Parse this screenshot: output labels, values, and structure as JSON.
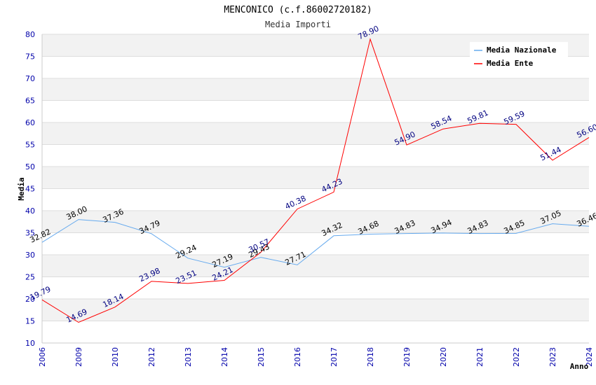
{
  "chart_data": {
    "type": "line",
    "title": "MENCONICO (c.f.86002720182)",
    "subtitle": "Media Importi",
    "xlabel": "Anno",
    "ylabel": "Media",
    "ylim": [
      10,
      80
    ],
    "ytick_step": 5,
    "categories": [
      "2006",
      "2009",
      "2010",
      "2012",
      "2013",
      "2014",
      "2015",
      "2016",
      "2017",
      "2018",
      "2019",
      "2020",
      "2021",
      "2022",
      "2023",
      "2024"
    ],
    "series": [
      {
        "name": "Media Nazionale",
        "color": "#66aaee",
        "values": [
          32.82,
          38.0,
          37.36,
          34.79,
          29.24,
          27.19,
          29.43,
          27.71,
          34.32,
          34.68,
          34.83,
          34.94,
          34.83,
          34.85,
          37.05,
          36.46
        ],
        "labels": [
          "32.82",
          "38.00",
          "37.36",
          "34.79",
          "29.24",
          "27.19",
          "29.43",
          "27.71",
          "34.32",
          "34.68",
          "34.83",
          "34.94",
          "34.83",
          "34.85",
          "37.05",
          "36.46"
        ]
      },
      {
        "name": "Media Ente",
        "color": "#ff0000",
        "values": [
          19.79,
          14.69,
          18.14,
          23.98,
          23.51,
          24.21,
          30.57,
          40.38,
          44.23,
          78.9,
          54.9,
          58.54,
          59.81,
          59.59,
          51.44,
          56.6
        ],
        "labels": [
          "19.79",
          "14.69",
          "18.14",
          "23.98",
          "23.51",
          "24.21",
          "30.57",
          "40.38",
          "44.23",
          "78.90",
          "54.90",
          "58.54",
          "59.81",
          "59.59",
          "51.44",
          "56.60"
        ]
      }
    ],
    "grid": true,
    "legend_position": "top-right"
  }
}
